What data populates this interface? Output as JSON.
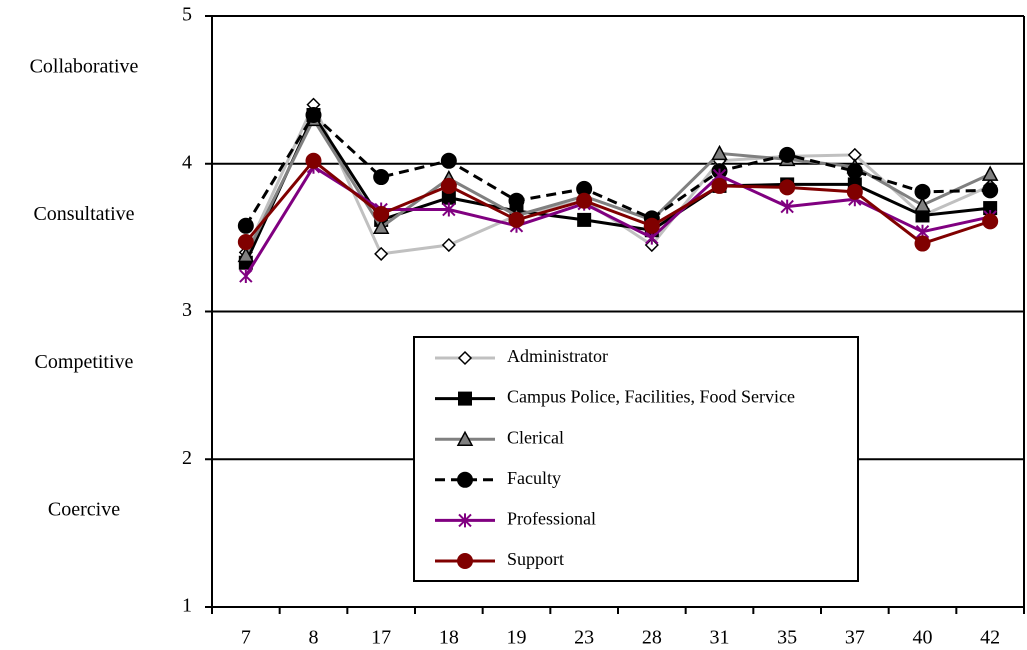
{
  "chart_data": {
    "type": "line",
    "categories": [
      "7",
      "8",
      "17",
      "18",
      "19",
      "23",
      "28",
      "31",
      "35",
      "37",
      "40",
      "42"
    ],
    "ylim": [
      1,
      5
    ],
    "yticks": [
      1,
      2,
      3,
      4,
      5
    ],
    "grid": true,
    "band_labels": [
      "Collaborative",
      "Consultative",
      "Competitive",
      "Coercive"
    ],
    "legend": "center",
    "series": [
      {
        "name": "Administrator",
        "color": "#c0c0c0",
        "marker": "diamond",
        "dash": false,
        "values": [
          3.4,
          4.4,
          3.39,
          3.45,
          3.65,
          3.75,
          3.45,
          4.02,
          4.05,
          4.06,
          3.65,
          3.85
        ]
      },
      {
        "name": "Campus Police, Facilities, Food Service",
        "color": "#000000",
        "marker": "square",
        "dash": false,
        "values": [
          3.33,
          4.33,
          3.62,
          3.77,
          3.68,
          3.62,
          3.55,
          3.85,
          3.86,
          3.86,
          3.65,
          3.7
        ]
      },
      {
        "name": "Clerical",
        "color": "#808080",
        "marker": "triangle",
        "dash": false,
        "values": [
          3.38,
          4.3,
          3.57,
          3.9,
          3.65,
          3.78,
          3.62,
          4.07,
          4.03,
          3.98,
          3.72,
          3.93
        ]
      },
      {
        "name": "Faculty",
        "color": "#000000",
        "marker": "circle",
        "dash": true,
        "values": [
          3.58,
          4.33,
          3.91,
          4.02,
          3.75,
          3.83,
          3.63,
          3.95,
          4.06,
          3.95,
          3.81,
          3.82
        ]
      },
      {
        "name": "Professional",
        "color": "#800080",
        "marker": "star",
        "dash": false,
        "values": [
          3.24,
          3.98,
          3.69,
          3.69,
          3.58,
          3.73,
          3.5,
          3.92,
          3.71,
          3.76,
          3.54,
          3.64
        ]
      },
      {
        "name": "Support",
        "color": "#800000",
        "marker": "circle",
        "dash": false,
        "values": [
          3.47,
          4.02,
          3.66,
          3.85,
          3.62,
          3.75,
          3.58,
          3.85,
          3.84,
          3.81,
          3.46,
          3.61
        ]
      }
    ]
  }
}
